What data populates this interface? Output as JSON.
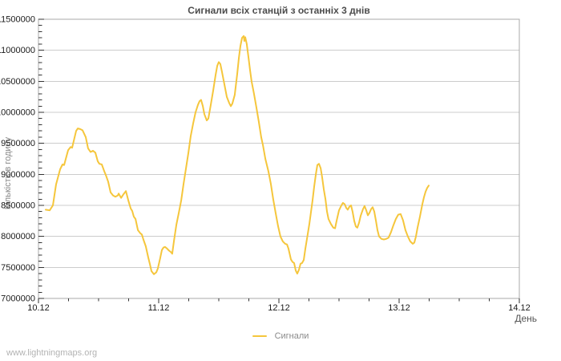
{
  "watermark": "www.lightningmaps.org",
  "chart_data": {
    "type": "line",
    "title": "Сигнали всіх станцій з останніх 3 днів",
    "xlabel": "День",
    "ylabel": "Кількість в годину",
    "x_tick_labels": [
      "10.12",
      "11.12",
      "12.12",
      "13.12",
      "14.12"
    ],
    "x_minor_per_day": 4,
    "y_ticks": [
      7000000,
      7500000,
      8000000,
      8500000,
      9000000,
      9500000,
      10000000,
      10500000,
      11000000,
      11500000
    ],
    "y_minor_step": 100000,
    "ylim": [
      7000000,
      11500000
    ],
    "xlim_days": [
      0,
      4
    ],
    "grid": true,
    "legend": {
      "position": "bottom-center",
      "entries": [
        {
          "label": "Сигнали",
          "color": "#f5c63c"
        }
      ]
    },
    "colors": {
      "line": "#f5c63c",
      "grid": "#cccccc",
      "border": "#a8a8a8",
      "tick": "#333333",
      "tick_text": "#1a1a1a",
      "title_text": "#4d4d4d",
      "axis_label_text": "#8a8a8a",
      "watermark_text": "#b3b3b3"
    },
    "series": [
      {
        "name": "Сигнали",
        "unit": "signals per hour",
        "points_day_value": [
          [
            0.06,
            8430000
          ],
          [
            0.093,
            8420000
          ],
          [
            0.12,
            8500000
          ],
          [
            0.147,
            8840000
          ],
          [
            0.18,
            9080000
          ],
          [
            0.2,
            9160000
          ],
          [
            0.213,
            9150000
          ],
          [
            0.247,
            9390000
          ],
          [
            0.267,
            9440000
          ],
          [
            0.28,
            9430000
          ],
          [
            0.313,
            9700000
          ],
          [
            0.327,
            9740000
          ],
          [
            0.347,
            9730000
          ],
          [
            0.367,
            9710000
          ],
          [
            0.393,
            9600000
          ],
          [
            0.413,
            9420000
          ],
          [
            0.433,
            9360000
          ],
          [
            0.453,
            9380000
          ],
          [
            0.473,
            9350000
          ],
          [
            0.493,
            9210000
          ],
          [
            0.507,
            9170000
          ],
          [
            0.527,
            9160000
          ],
          [
            0.547,
            9050000
          ],
          [
            0.56,
            8990000
          ],
          [
            0.58,
            8880000
          ],
          [
            0.6,
            8710000
          ],
          [
            0.62,
            8660000
          ],
          [
            0.64,
            8640000
          ],
          [
            0.66,
            8660000
          ],
          [
            0.667,
            8690000
          ],
          [
            0.687,
            8620000
          ],
          [
            0.707,
            8680000
          ],
          [
            0.727,
            8730000
          ],
          [
            0.747,
            8580000
          ],
          [
            0.767,
            8450000
          ],
          [
            0.78,
            8410000
          ],
          [
            0.793,
            8320000
          ],
          [
            0.807,
            8280000
          ],
          [
            0.827,
            8100000
          ],
          [
            0.847,
            8050000
          ],
          [
            0.86,
            8030000
          ],
          [
            0.873,
            7950000
          ],
          [
            0.893,
            7840000
          ],
          [
            0.913,
            7660000
          ],
          [
            0.927,
            7550000
          ],
          [
            0.94,
            7440000
          ],
          [
            0.96,
            7390000
          ],
          [
            0.98,
            7420000
          ],
          [
            0.993,
            7480000
          ],
          [
            1.013,
            7650000
          ],
          [
            1.027,
            7780000
          ],
          [
            1.04,
            7820000
          ],
          [
            1.053,
            7830000
          ],
          [
            1.067,
            7810000
          ],
          [
            1.087,
            7770000
          ],
          [
            1.1,
            7750000
          ],
          [
            1.113,
            7720000
          ],
          [
            1.127,
            7930000
          ],
          [
            1.147,
            8190000
          ],
          [
            1.167,
            8380000
          ],
          [
            1.187,
            8580000
          ],
          [
            1.207,
            8850000
          ],
          [
            1.227,
            9100000
          ],
          [
            1.247,
            9350000
          ],
          [
            1.267,
            9620000
          ],
          [
            1.287,
            9820000
          ],
          [
            1.307,
            10000000
          ],
          [
            1.327,
            10120000
          ],
          [
            1.34,
            10180000
          ],
          [
            1.353,
            10200000
          ],
          [
            1.367,
            10100000
          ],
          [
            1.38,
            9970000
          ],
          [
            1.4,
            9870000
          ],
          [
            1.413,
            9900000
          ],
          [
            1.433,
            10120000
          ],
          [
            1.453,
            10350000
          ],
          [
            1.473,
            10600000
          ],
          [
            1.487,
            10750000
          ],
          [
            1.5,
            10810000
          ],
          [
            1.513,
            10780000
          ],
          [
            1.527,
            10650000
          ],
          [
            1.547,
            10450000
          ],
          [
            1.567,
            10250000
          ],
          [
            1.587,
            10150000
          ],
          [
            1.6,
            10100000
          ],
          [
            1.613,
            10140000
          ],
          [
            1.633,
            10280000
          ],
          [
            1.653,
            10620000
          ],
          [
            1.667,
            10880000
          ],
          [
            1.68,
            11070000
          ],
          [
            1.693,
            11200000
          ],
          [
            1.707,
            11230000
          ],
          [
            1.713,
            11150000
          ],
          [
            1.72,
            11210000
          ],
          [
            1.733,
            11100000
          ],
          [
            1.747,
            10880000
          ],
          [
            1.76,
            10680000
          ],
          [
            1.773,
            10500000
          ],
          [
            1.793,
            10300000
          ],
          [
            1.813,
            10080000
          ],
          [
            1.833,
            9850000
          ],
          [
            1.853,
            9600000
          ],
          [
            1.867,
            9470000
          ],
          [
            1.887,
            9250000
          ],
          [
            1.913,
            9050000
          ],
          [
            1.933,
            8850000
          ],
          [
            1.953,
            8600000
          ],
          [
            1.973,
            8380000
          ],
          [
            1.993,
            8170000
          ],
          [
            2.013,
            8000000
          ],
          [
            2.033,
            7920000
          ],
          [
            2.053,
            7880000
          ],
          [
            2.067,
            7870000
          ],
          [
            2.08,
            7800000
          ],
          [
            2.1,
            7630000
          ],
          [
            2.113,
            7590000
          ],
          [
            2.127,
            7570000
          ],
          [
            2.14,
            7450000
          ],
          [
            2.153,
            7400000
          ],
          [
            2.167,
            7460000
          ],
          [
            2.18,
            7560000
          ],
          [
            2.193,
            7570000
          ],
          [
            2.207,
            7620000
          ],
          [
            2.22,
            7800000
          ],
          [
            2.233,
            7950000
          ],
          [
            2.253,
            8200000
          ],
          [
            2.267,
            8400000
          ],
          [
            2.28,
            8580000
          ],
          [
            2.293,
            8800000
          ],
          [
            2.307,
            9000000
          ],
          [
            2.32,
            9150000
          ],
          [
            2.333,
            9170000
          ],
          [
            2.347,
            9100000
          ],
          [
            2.36,
            8950000
          ],
          [
            2.373,
            8760000
          ],
          [
            2.387,
            8600000
          ],
          [
            2.4,
            8400000
          ],
          [
            2.413,
            8280000
          ],
          [
            2.433,
            8200000
          ],
          [
            2.453,
            8140000
          ],
          [
            2.467,
            8130000
          ],
          [
            2.48,
            8250000
          ],
          [
            2.5,
            8420000
          ],
          [
            2.52,
            8500000
          ],
          [
            2.533,
            8540000
          ],
          [
            2.547,
            8520000
          ],
          [
            2.56,
            8460000
          ],
          [
            2.573,
            8430000
          ],
          [
            2.587,
            8480000
          ],
          [
            2.6,
            8500000
          ],
          [
            2.613,
            8400000
          ],
          [
            2.627,
            8250000
          ],
          [
            2.64,
            8160000
          ],
          [
            2.653,
            8140000
          ],
          [
            2.667,
            8220000
          ],
          [
            2.68,
            8330000
          ],
          [
            2.7,
            8440000
          ],
          [
            2.713,
            8490000
          ],
          [
            2.727,
            8420000
          ],
          [
            2.74,
            8340000
          ],
          [
            2.753,
            8380000
          ],
          [
            2.767,
            8440000
          ],
          [
            2.78,
            8470000
          ],
          [
            2.793,
            8400000
          ],
          [
            2.807,
            8250000
          ],
          [
            2.82,
            8100000
          ],
          [
            2.833,
            8000000
          ],
          [
            2.853,
            7960000
          ],
          [
            2.873,
            7950000
          ],
          [
            2.893,
            7960000
          ],
          [
            2.913,
            7980000
          ],
          [
            2.933,
            8070000
          ],
          [
            2.953,
            8180000
          ],
          [
            2.973,
            8280000
          ],
          [
            2.993,
            8350000
          ],
          [
            3.013,
            8360000
          ],
          [
            3.033,
            8260000
          ],
          [
            3.053,
            8100000
          ],
          [
            3.073,
            8000000
          ],
          [
            3.093,
            7920000
          ],
          [
            3.113,
            7880000
          ],
          [
            3.127,
            7900000
          ],
          [
            3.14,
            8000000
          ],
          [
            3.153,
            8140000
          ],
          [
            3.173,
            8320000
          ],
          [
            3.193,
            8520000
          ],
          [
            3.207,
            8630000
          ],
          [
            3.22,
            8720000
          ],
          [
            3.233,
            8780000
          ],
          [
            3.247,
            8820000
          ]
        ]
      }
    ]
  }
}
